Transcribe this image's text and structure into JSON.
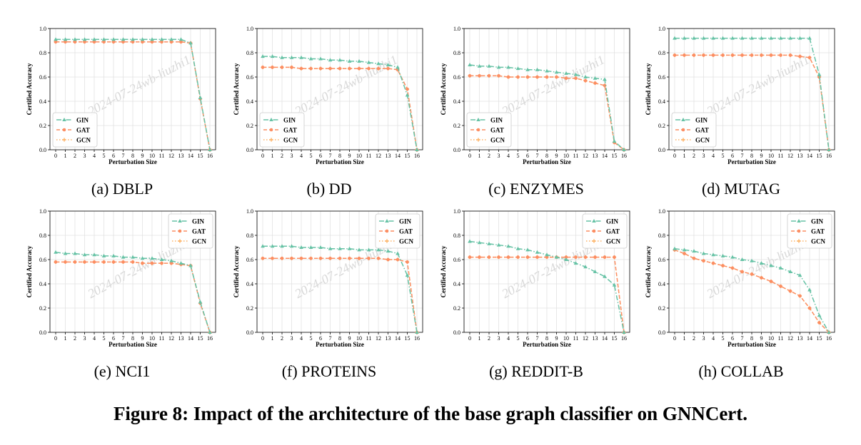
{
  "figure": {
    "caption": "Figure 8: Impact of the architecture of the base graph classifier on GNNCert.",
    "watermark": "2024-07-24wb-liuzhi1",
    "series_colors": {
      "GIN": "#66c2a5",
      "GAT": "#fc8d62",
      "GCN": "#fdb366"
    }
  },
  "chart_data": [
    {
      "type": "line",
      "subcaption": "(a) DBLP",
      "xlabel": "Perturbation Size",
      "ylabel": "Certified Accuracy",
      "x": [
        0,
        1,
        2,
        3,
        4,
        5,
        6,
        7,
        8,
        9,
        10,
        11,
        12,
        13,
        14,
        15,
        16
      ],
      "xlim": [
        0,
        16
      ],
      "ylim": [
        0,
        1.0
      ],
      "yticks": [
        "0.0",
        "0.2",
        "0.4",
        "0.6",
        "0.8",
        "1.0"
      ],
      "grid": true,
      "legend_position": "lower-left",
      "series": [
        {
          "name": "GIN",
          "values": [
            0.91,
            0.91,
            0.91,
            0.91,
            0.91,
            0.91,
            0.91,
            0.91,
            0.91,
            0.91,
            0.91,
            0.91,
            0.91,
            0.91,
            0.88,
            0.43,
            0.0
          ]
        },
        {
          "name": "GAT",
          "values": [
            0.89,
            0.89,
            0.89,
            0.89,
            0.89,
            0.89,
            0.89,
            0.89,
            0.89,
            0.89,
            0.89,
            0.89,
            0.89,
            0.89,
            0.88,
            0.42,
            0.0
          ]
        },
        {
          "name": "GCN",
          "values": [
            0.89,
            0.89,
            0.89,
            0.89,
            0.89,
            0.89,
            0.89,
            0.89,
            0.89,
            0.89,
            0.89,
            0.89,
            0.89,
            0.89,
            0.88,
            0.42,
            0.0
          ]
        }
      ]
    },
    {
      "type": "line",
      "subcaption": "(b) DD",
      "xlabel": "Perturbation Size",
      "ylabel": "Certified Accuracy",
      "x": [
        0,
        1,
        2,
        3,
        4,
        5,
        6,
        7,
        8,
        9,
        10,
        11,
        12,
        13,
        14,
        15,
        16
      ],
      "xlim": [
        0,
        16
      ],
      "ylim": [
        0,
        1.0
      ],
      "yticks": [
        "0.0",
        "0.2",
        "0.4",
        "0.6",
        "0.8",
        "1.0"
      ],
      "grid": true,
      "legend_position": "lower-left",
      "series": [
        {
          "name": "GIN",
          "values": [
            0.77,
            0.77,
            0.76,
            0.76,
            0.76,
            0.75,
            0.75,
            0.74,
            0.74,
            0.73,
            0.73,
            0.72,
            0.71,
            0.7,
            0.68,
            0.45,
            0.0
          ]
        },
        {
          "name": "GAT",
          "values": [
            0.68,
            0.68,
            0.68,
            0.68,
            0.67,
            0.67,
            0.67,
            0.67,
            0.67,
            0.67,
            0.67,
            0.67,
            0.67,
            0.67,
            0.66,
            0.5,
            0.0
          ]
        },
        {
          "name": "GCN",
          "values": [
            0.68,
            0.68,
            0.68,
            0.68,
            0.67,
            0.67,
            0.67,
            0.67,
            0.67,
            0.67,
            0.67,
            0.67,
            0.67,
            0.67,
            0.66,
            0.5,
            0.0
          ]
        }
      ]
    },
    {
      "type": "line",
      "subcaption": "(c) ENZYMES",
      "xlabel": "Perturbation Size",
      "ylabel": "Certified Accuracy",
      "x": [
        0,
        1,
        2,
        3,
        4,
        5,
        6,
        7,
        8,
        9,
        10,
        11,
        12,
        13,
        14,
        15,
        16
      ],
      "xlim": [
        0,
        16
      ],
      "ylim": [
        0,
        1.0
      ],
      "yticks": [
        "0.0",
        "0.2",
        "0.4",
        "0.6",
        "0.8",
        "1.0"
      ],
      "grid": true,
      "legend_position": "lower-left",
      "series": [
        {
          "name": "GIN",
          "values": [
            0.7,
            0.69,
            0.69,
            0.68,
            0.68,
            0.67,
            0.66,
            0.66,
            0.65,
            0.64,
            0.63,
            0.62,
            0.6,
            0.59,
            0.58,
            0.07,
            0.0
          ]
        },
        {
          "name": "GAT",
          "values": [
            0.61,
            0.61,
            0.61,
            0.61,
            0.6,
            0.6,
            0.6,
            0.6,
            0.6,
            0.6,
            0.59,
            0.59,
            0.57,
            0.55,
            0.53,
            0.06,
            0.0
          ]
        },
        {
          "name": "GCN",
          "values": [
            0.61,
            0.61,
            0.61,
            0.61,
            0.6,
            0.6,
            0.6,
            0.6,
            0.6,
            0.6,
            0.59,
            0.59,
            0.57,
            0.55,
            0.53,
            0.06,
            0.0
          ]
        }
      ]
    },
    {
      "type": "line",
      "subcaption": "(d) MUTAG",
      "xlabel": "Perturbation Size",
      "ylabel": "Certified Accuracy",
      "x": [
        0,
        1,
        2,
        3,
        4,
        5,
        6,
        7,
        8,
        9,
        10,
        11,
        12,
        13,
        14,
        15,
        16
      ],
      "xlim": [
        0,
        16
      ],
      "ylim": [
        0,
        1.0
      ],
      "yticks": [
        "0.0",
        "0.2",
        "0.4",
        "0.6",
        "0.8",
        "1.0"
      ],
      "grid": true,
      "legend_position": "lower-left",
      "series": [
        {
          "name": "GIN",
          "values": [
            0.92,
            0.92,
            0.92,
            0.92,
            0.92,
            0.92,
            0.92,
            0.92,
            0.92,
            0.92,
            0.92,
            0.92,
            0.92,
            0.92,
            0.92,
            0.62,
            0.0
          ]
        },
        {
          "name": "GAT",
          "values": [
            0.78,
            0.78,
            0.78,
            0.78,
            0.78,
            0.78,
            0.78,
            0.78,
            0.78,
            0.78,
            0.78,
            0.78,
            0.78,
            0.77,
            0.76,
            0.6,
            0.0
          ]
        },
        {
          "name": "GCN",
          "values": [
            0.78,
            0.78,
            0.78,
            0.78,
            0.78,
            0.78,
            0.78,
            0.78,
            0.78,
            0.78,
            0.78,
            0.78,
            0.78,
            0.77,
            0.76,
            0.6,
            0.0
          ]
        }
      ]
    },
    {
      "type": "line",
      "subcaption": "(e) NCI1",
      "xlabel": "Perturbation Size",
      "ylabel": "Certified Accuracy",
      "x": [
        0,
        1,
        2,
        3,
        4,
        5,
        6,
        7,
        8,
        9,
        10,
        11,
        12,
        13,
        14,
        15,
        16
      ],
      "xlim": [
        0,
        16
      ],
      "ylim": [
        0,
        1.0
      ],
      "yticks": [
        "0.0",
        "0.2",
        "0.4",
        "0.6",
        "0.8",
        "1.0"
      ],
      "grid": true,
      "legend_position": "upper-right",
      "series": [
        {
          "name": "GIN",
          "values": [
            0.66,
            0.65,
            0.65,
            0.64,
            0.64,
            0.63,
            0.63,
            0.62,
            0.62,
            0.61,
            0.61,
            0.6,
            0.59,
            0.57,
            0.55,
            0.25,
            0.0
          ]
        },
        {
          "name": "GAT",
          "values": [
            0.58,
            0.58,
            0.58,
            0.58,
            0.58,
            0.58,
            0.58,
            0.58,
            0.58,
            0.57,
            0.57,
            0.57,
            0.57,
            0.56,
            0.55,
            0.24,
            0.0
          ]
        },
        {
          "name": "GCN",
          "values": [
            0.58,
            0.58,
            0.58,
            0.58,
            0.58,
            0.58,
            0.58,
            0.58,
            0.58,
            0.57,
            0.57,
            0.57,
            0.57,
            0.56,
            0.55,
            0.24,
            0.0
          ]
        }
      ]
    },
    {
      "type": "line",
      "subcaption": "(f) PROTEINS",
      "xlabel": "Perturbation Size",
      "ylabel": "Certified Accuracy",
      "x": [
        0,
        1,
        2,
        3,
        4,
        5,
        6,
        7,
        8,
        9,
        10,
        11,
        12,
        13,
        14,
        15,
        16
      ],
      "xlim": [
        0,
        16
      ],
      "ylim": [
        0,
        1.0
      ],
      "yticks": [
        "0.0",
        "0.2",
        "0.4",
        "0.6",
        "0.8",
        "1.0"
      ],
      "grid": true,
      "legend_position": "upper-right",
      "series": [
        {
          "name": "GIN",
          "values": [
            0.71,
            0.71,
            0.71,
            0.71,
            0.7,
            0.7,
            0.7,
            0.69,
            0.69,
            0.69,
            0.68,
            0.68,
            0.68,
            0.67,
            0.65,
            0.47,
            0.0
          ]
        },
        {
          "name": "GAT",
          "values": [
            0.61,
            0.61,
            0.61,
            0.61,
            0.61,
            0.61,
            0.61,
            0.61,
            0.61,
            0.61,
            0.61,
            0.61,
            0.61,
            0.6,
            0.6,
            0.58,
            0.0
          ]
        },
        {
          "name": "GCN",
          "values": [
            0.61,
            0.61,
            0.61,
            0.61,
            0.61,
            0.61,
            0.61,
            0.61,
            0.61,
            0.61,
            0.61,
            0.61,
            0.61,
            0.6,
            0.6,
            0.58,
            0.0
          ]
        }
      ]
    },
    {
      "type": "line",
      "subcaption": "(g) REDDIT-B",
      "xlabel": "Perturbation Size",
      "ylabel": "Certified Accuracy",
      "x": [
        0,
        1,
        2,
        3,
        4,
        5,
        6,
        7,
        8,
        9,
        10,
        11,
        12,
        13,
        14,
        15,
        16
      ],
      "xlim": [
        0,
        16
      ],
      "ylim": [
        0,
        1.0
      ],
      "yticks": [
        "0.0",
        "0.2",
        "0.4",
        "0.6",
        "0.8",
        "1.0"
      ],
      "grid": true,
      "legend_position": "upper-right",
      "series": [
        {
          "name": "GIN",
          "values": [
            0.75,
            0.74,
            0.73,
            0.72,
            0.71,
            0.69,
            0.68,
            0.66,
            0.64,
            0.62,
            0.6,
            0.57,
            0.54,
            0.5,
            0.46,
            0.39,
            0.0
          ]
        },
        {
          "name": "GAT",
          "values": [
            0.62,
            0.62,
            0.62,
            0.62,
            0.62,
            0.62,
            0.62,
            0.62,
            0.62,
            0.62,
            0.62,
            0.62,
            0.62,
            0.62,
            0.62,
            0.62,
            0.0
          ]
        },
        {
          "name": "GCN",
          "values": [
            0.62,
            0.62,
            0.62,
            0.62,
            0.62,
            0.62,
            0.62,
            0.62,
            0.62,
            0.62,
            0.62,
            0.62,
            0.62,
            0.62,
            0.62,
            0.62,
            0.0
          ]
        }
      ]
    },
    {
      "type": "line",
      "subcaption": "(h) COLLAB",
      "xlabel": "Perturbation Size",
      "ylabel": "Certified Accuracy",
      "x": [
        0,
        1,
        2,
        3,
        4,
        5,
        6,
        7,
        8,
        9,
        10,
        11,
        12,
        13,
        14,
        15,
        16
      ],
      "xlim": [
        0,
        16
      ],
      "ylim": [
        0,
        1.0
      ],
      "yticks": [
        "0.0",
        "0.2",
        "0.4",
        "0.6",
        "0.8",
        "1.0"
      ],
      "grid": true,
      "legend_position": "upper-right",
      "series": [
        {
          "name": "GIN",
          "values": [
            0.69,
            0.68,
            0.67,
            0.65,
            0.64,
            0.63,
            0.62,
            0.6,
            0.59,
            0.57,
            0.55,
            0.53,
            0.5,
            0.47,
            0.35,
            0.14,
            0.0
          ]
        },
        {
          "name": "GAT",
          "values": [
            0.68,
            0.65,
            0.61,
            0.59,
            0.57,
            0.55,
            0.53,
            0.5,
            0.48,
            0.45,
            0.42,
            0.38,
            0.34,
            0.3,
            0.2,
            0.08,
            0.0
          ]
        },
        {
          "name": "GCN",
          "values": [
            0.68,
            0.65,
            0.61,
            0.59,
            0.57,
            0.55,
            0.53,
            0.5,
            0.48,
            0.45,
            0.42,
            0.38,
            0.34,
            0.3,
            0.2,
            0.08,
            0.0
          ]
        }
      ]
    }
  ]
}
